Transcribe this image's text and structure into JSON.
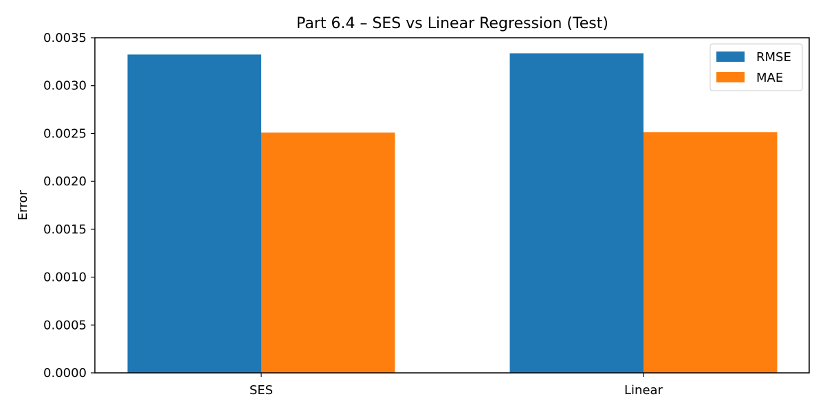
{
  "chart_data": {
    "type": "bar",
    "title": "Part 6.4 – SES vs Linear Regression (Test)",
    "xlabel": "",
    "ylabel": "Error",
    "categories": [
      "SES",
      "Linear"
    ],
    "series": [
      {
        "name": "RMSE",
        "values": [
          0.003325,
          0.003338
        ],
        "color": "#1f77b4"
      },
      {
        "name": "MAE",
        "values": [
          0.00251,
          0.002515
        ],
        "color": "#ff7f0e"
      }
    ],
    "ylim": [
      0,
      0.0035
    ],
    "yticks": [
      "0.0000",
      "0.0005",
      "0.0010",
      "0.0015",
      "0.0020",
      "0.0025",
      "0.0030",
      "0.0035"
    ],
    "ytick_values": [
      0,
      0.0005,
      0.001,
      0.0015,
      0.002,
      0.0025,
      0.003,
      0.0035
    ],
    "grid": false,
    "legend_position": "top-right"
  }
}
